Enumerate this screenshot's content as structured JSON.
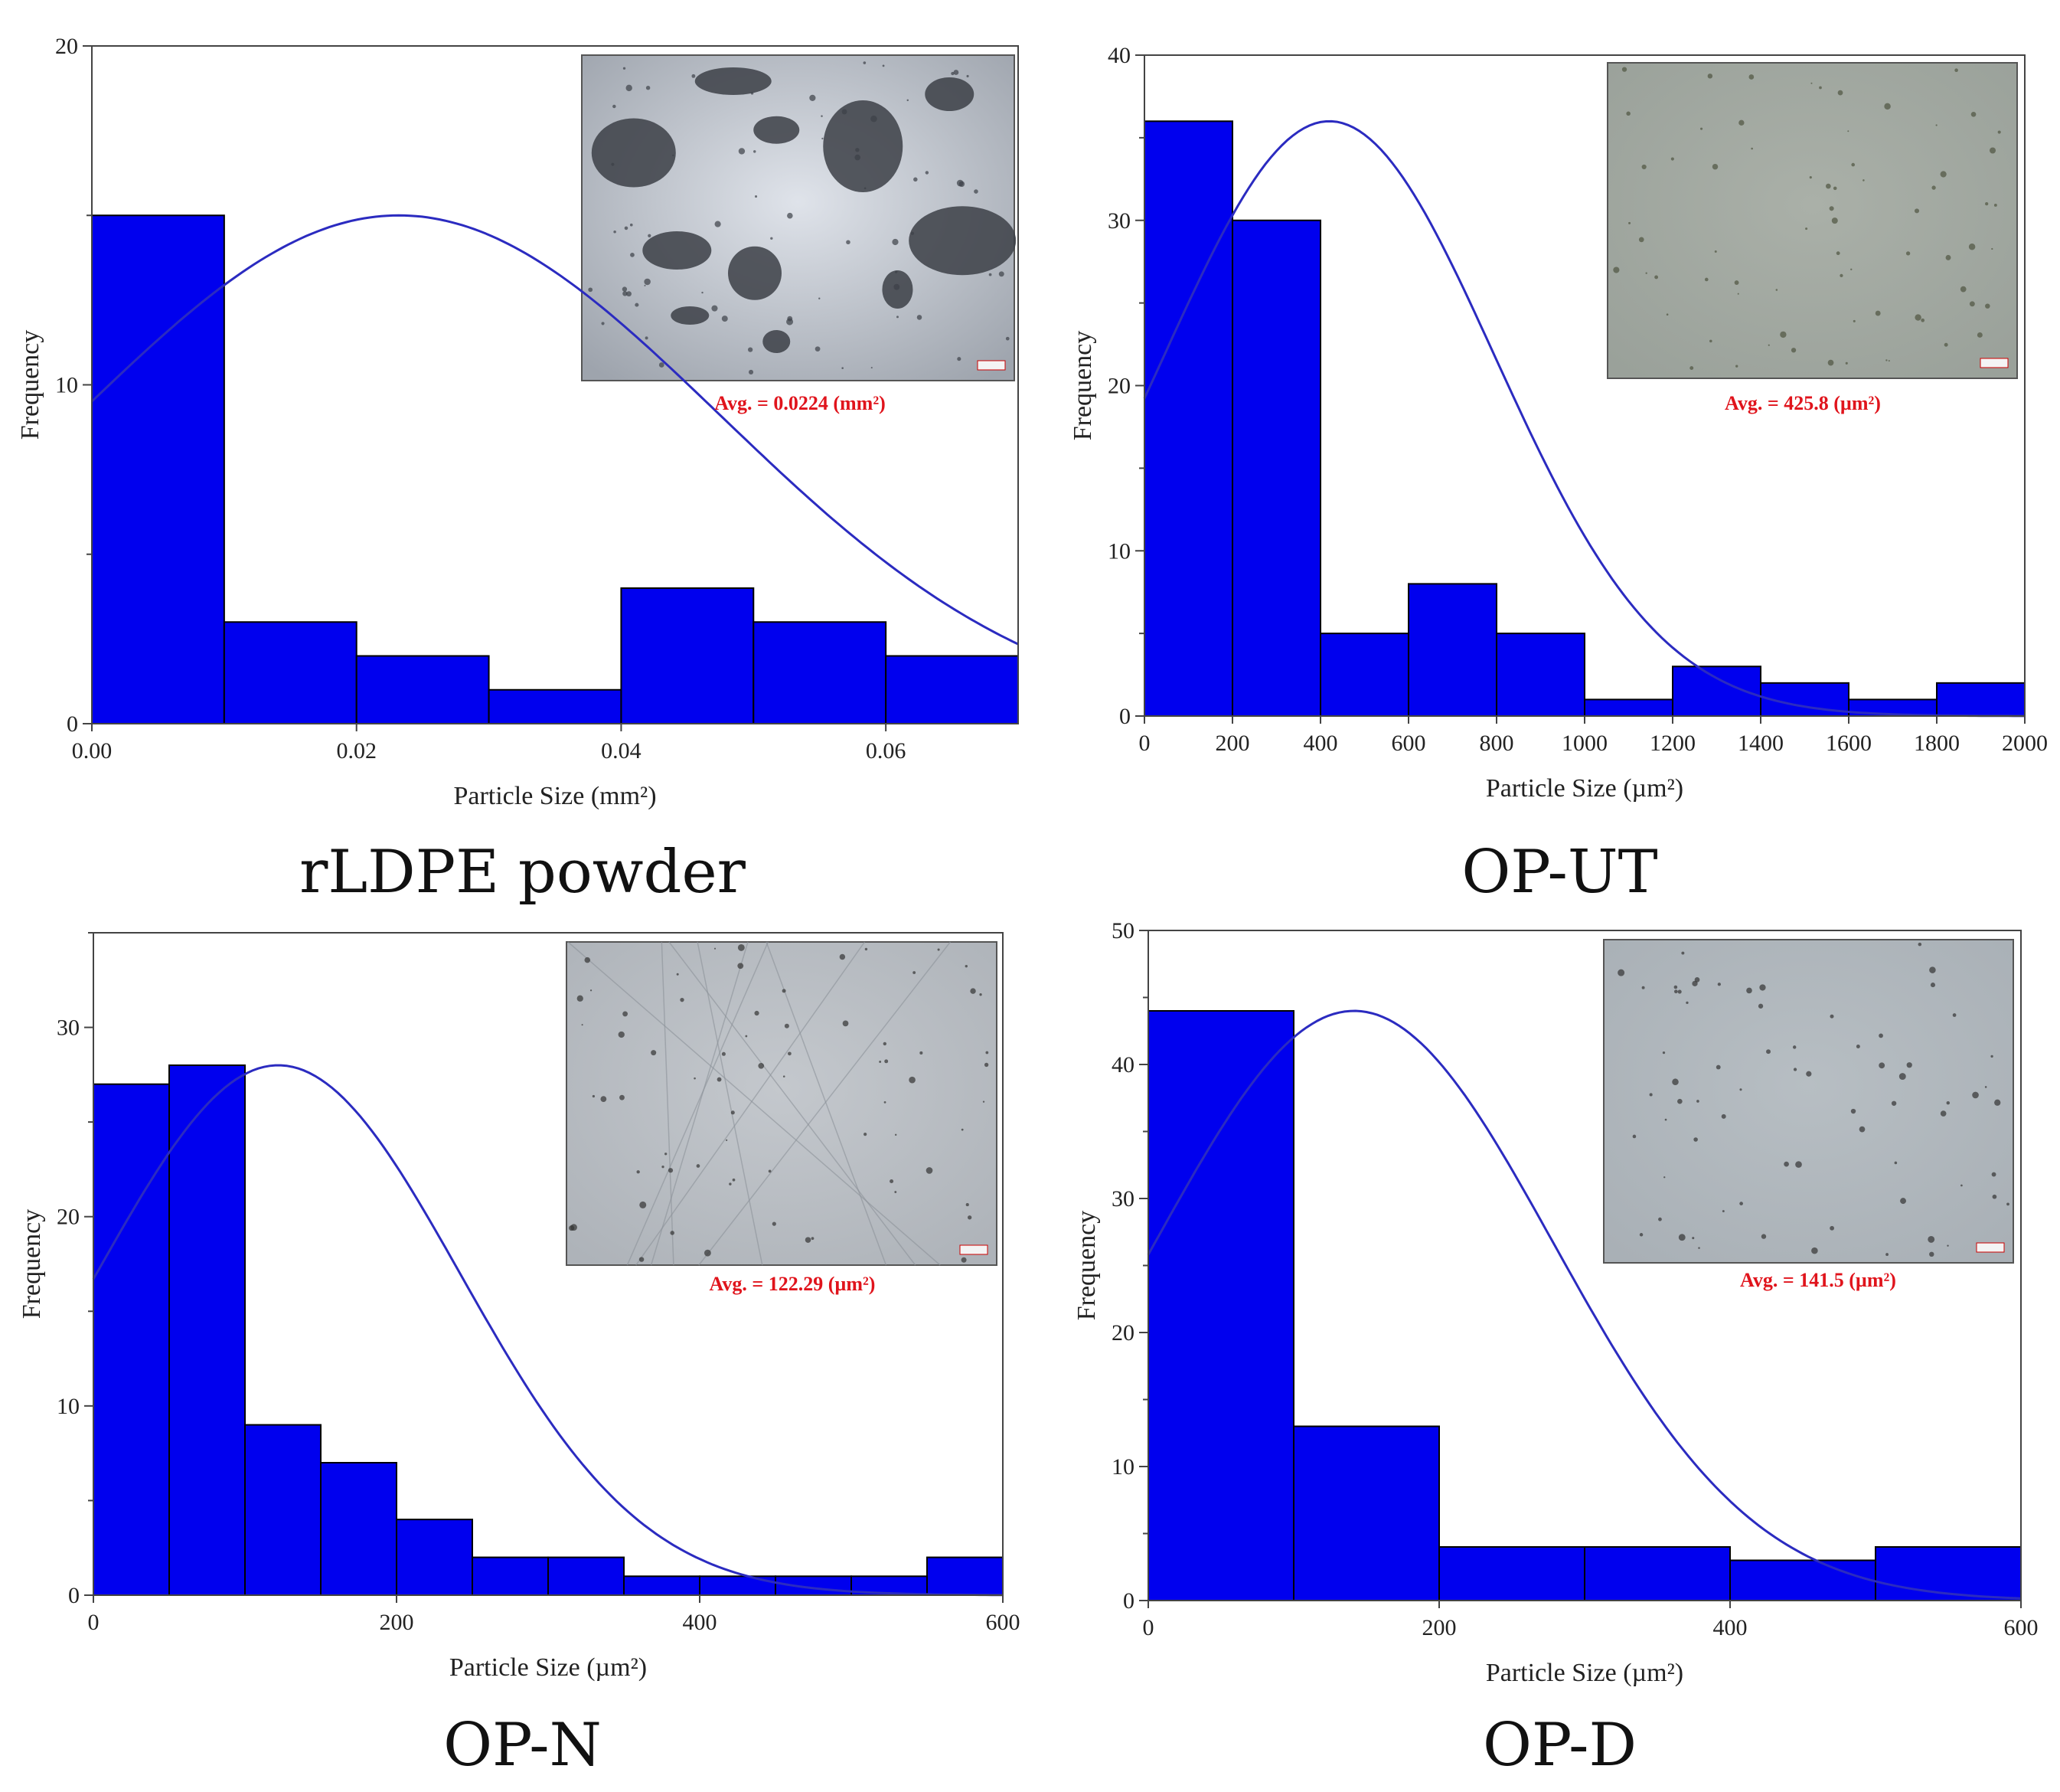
{
  "chart_data": [
    {
      "type": "bar",
      "panel": "rLDPE powder",
      "title": "rLDPE powder",
      "xlabel": "Particle Size (mm²)",
      "ylabel": "Frequency",
      "bin_edges": [
        0.0,
        0.01,
        0.02,
        0.03,
        0.04,
        0.05,
        0.06,
        0.07
      ],
      "values": [
        15,
        3,
        2,
        1,
        4,
        3,
        2
      ],
      "xlim": [
        0,
        0.07
      ],
      "ylim": [
        0,
        20
      ],
      "xticks": [
        0.0,
        0.02,
        0.04,
        0.06
      ],
      "xtick_labels": [
        "0.00",
        "0.02",
        "0.04",
        "0.06"
      ],
      "yticks": [
        0,
        10,
        20
      ],
      "yminor": 5,
      "fit": {
        "type": "gaussian",
        "mean": 0.0232,
        "sd": 0.0243,
        "peak": 15
      },
      "annotation": "Avg. = 0.0224 (mm²)",
      "inset": "micrograph"
    },
    {
      "type": "bar",
      "panel": "OP-UT",
      "title": "OP-UT",
      "xlabel": "Particle Size (µm²)",
      "ylabel": "Frequency",
      "bin_edges": [
        0,
        200,
        400,
        600,
        800,
        1000,
        1200,
        1400,
        1600,
        1800,
        2000
      ],
      "values": [
        36,
        30,
        5,
        8,
        5,
        1,
        3,
        2,
        1,
        2
      ],
      "xlim": [
        0,
        2000
      ],
      "ylim": [
        0,
        40
      ],
      "xticks": [
        0,
        200,
        400,
        600,
        800,
        1000,
        1200,
        1400,
        1600,
        1800,
        2000
      ],
      "xtick_labels": [
        "0",
        "200",
        "400",
        "600",
        "800",
        "1000",
        "1200",
        "1400",
        "1600",
        "1800",
        "2000"
      ],
      "yticks": [
        0,
        10,
        20,
        30,
        40
      ],
      "yminor": 5,
      "fit": {
        "type": "gaussian",
        "mean": 420,
        "sd": 375,
        "peak": 36
      },
      "annotation": "Avg. = 425.8 (µm²)",
      "inset": "micrograph"
    },
    {
      "type": "bar",
      "panel": "OP-N",
      "title": "OP-N",
      "xlabel": "Particle Size (µm²)",
      "ylabel": "Frequency",
      "bin_edges": [
        0,
        50,
        100,
        150,
        200,
        250,
        300,
        350,
        400,
        450,
        500,
        550,
        600
      ],
      "values": [
        27,
        28,
        9,
        7,
        4,
        2,
        2,
        1,
        1,
        1,
        1,
        2
      ],
      "xlim": [
        0,
        600
      ],
      "ylim": [
        0,
        35
      ],
      "xticks": [
        0,
        200,
        400,
        600
      ],
      "xtick_labels": [
        "0",
        "200",
        "400",
        "600"
      ],
      "yticks": [
        0,
        10,
        20,
        30
      ],
      "yminor": 5,
      "fit": {
        "type": "gaussian",
        "mean": 122,
        "sd": 120,
        "peak": 28
      },
      "annotation": "Avg. = 122.29 (µm²)",
      "inset": "micrograph"
    },
    {
      "type": "bar",
      "panel": "OP-D",
      "title": "OP-D",
      "xlabel": "Particle Size (µm²)",
      "ylabel": "Frequency",
      "bin_edges": [
        0,
        100,
        200,
        300,
        400,
        500,
        600
      ],
      "values": [
        44,
        13,
        4,
        4,
        3,
        4
      ],
      "xlim": [
        0,
        600
      ],
      "ylim": [
        0,
        50
      ],
      "xticks": [
        0,
        200,
        400,
        600
      ],
      "xtick_labels": [
        "0",
        "200",
        "400",
        "600"
      ],
      "yticks": [
        0,
        10,
        20,
        30,
        40,
        50
      ],
      "yminor": 5,
      "fit": {
        "type": "gaussian",
        "mean": 141.5,
        "sd": 137,
        "peak": 44
      },
      "annotation": "Avg. = 141.5 (µm²)",
      "inset": "micrograph"
    }
  ],
  "colors": {
    "bar_fill": "#0000ee",
    "bar_edge": "#000000",
    "fit_curve": "#2b2bc0",
    "annotation": "#e0141c"
  },
  "captions": [
    "rLDPE powder",
    "OP-UT",
    "OP-N",
    "OP-D"
  ]
}
